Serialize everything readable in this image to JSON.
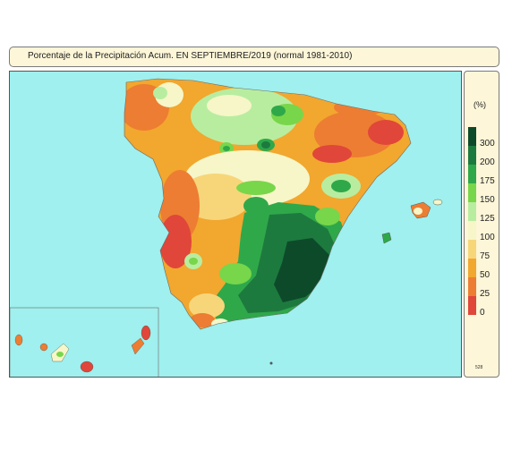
{
  "title": "Porcentaje de la Precipitación Acum. EN  SEPTIEMBRE/2019  (normal 1981-2010)",
  "legend": {
    "unit": "(%)",
    "items": [
      {
        "label": "300",
        "color": "#0d4a2a"
      },
      {
        "label": "200",
        "color": "#1d7a3e"
      },
      {
        "label": "175",
        "color": "#2fa84a"
      },
      {
        "label": "150",
        "color": "#78d64a"
      },
      {
        "label": "125",
        "color": "#b8eda0"
      },
      {
        "label": "100",
        "color": "#f6f6c8"
      },
      {
        "label": "75",
        "color": "#f7d67a"
      },
      {
        "label": "50",
        "color": "#f2a72e"
      },
      {
        "label": "25",
        "color": "#ed7d32"
      },
      {
        "label": "0",
        "color": "#e0463a"
      }
    ],
    "code": "528"
  },
  "colors": {
    "sea": "#9ff0ee",
    "frame": "#555555",
    "panel": "#fdf6d8"
  }
}
